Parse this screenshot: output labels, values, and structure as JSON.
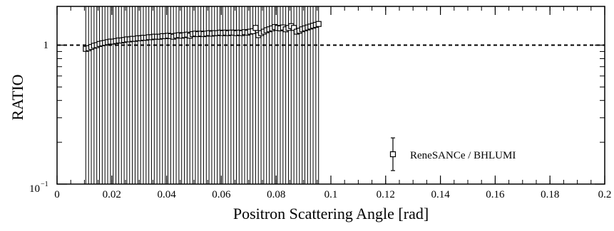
{
  "chart_data": {
    "type": "scatter",
    "title": "",
    "xlabel": "Positron Scattering Angle [rad]",
    "ylabel": "RATIO",
    "xlim": [
      0,
      0.2
    ],
    "ylim": [
      0.1,
      1.9
    ],
    "yscale": "log",
    "x_ticks": [
      "0",
      "0.02",
      "0.04",
      "0.06",
      "0.08",
      "0.1",
      "0.12",
      "0.14",
      "0.16",
      "0.18",
      "0.2"
    ],
    "y_tick_labels": {
      "one": "1",
      "tenth_base": "10",
      "tenth_exp": "−1"
    },
    "reference_line": {
      "y": 1,
      "style": "dashed"
    },
    "legend": {
      "label": "ReneSANCe / BHLUMI",
      "position": "bottom-right",
      "marker": "open-square-with-errorbar"
    },
    "series": [
      {
        "name": "ReneSANCe / BHLUMI",
        "marker": "open-square",
        "error": "extends beyond plot range",
        "x": [
          0.0105,
          0.0115,
          0.0125,
          0.0135,
          0.0145,
          0.0155,
          0.0165,
          0.0175,
          0.0185,
          0.0195,
          0.0205,
          0.0215,
          0.0225,
          0.0235,
          0.0245,
          0.0255,
          0.0265,
          0.0275,
          0.0285,
          0.0295,
          0.0305,
          0.0315,
          0.0325,
          0.0335,
          0.0345,
          0.0355,
          0.0365,
          0.0375,
          0.0385,
          0.0395,
          0.0405,
          0.0415,
          0.0425,
          0.0435,
          0.0445,
          0.0455,
          0.0465,
          0.0475,
          0.0485,
          0.0495,
          0.0505,
          0.0515,
          0.0525,
          0.0535,
          0.0545,
          0.0555,
          0.0565,
          0.0575,
          0.0585,
          0.0595,
          0.0605,
          0.0615,
          0.0625,
          0.0635,
          0.0645,
          0.0655,
          0.0665,
          0.0675,
          0.0685,
          0.0695,
          0.0705,
          0.0715,
          0.0725,
          0.0735,
          0.0745,
          0.0755,
          0.0765,
          0.0775,
          0.0785,
          0.0795,
          0.0805,
          0.0815,
          0.0825,
          0.0835,
          0.0845,
          0.0855,
          0.0865,
          0.0875,
          0.0885,
          0.0895,
          0.0905,
          0.0915,
          0.0925,
          0.0935,
          0.0945,
          0.0955
        ],
        "y": [
          0.94,
          0.95,
          0.97,
          0.99,
          1.0,
          1.02,
          1.03,
          1.04,
          1.05,
          1.06,
          1.06,
          1.07,
          1.08,
          1.08,
          1.09,
          1.1,
          1.1,
          1.11,
          1.11,
          1.12,
          1.12,
          1.13,
          1.13,
          1.14,
          1.14,
          1.15,
          1.15,
          1.15,
          1.16,
          1.16,
          1.17,
          1.16,
          1.15,
          1.17,
          1.18,
          1.17,
          1.18,
          1.19,
          1.17,
          1.2,
          1.21,
          1.2,
          1.21,
          1.2,
          1.21,
          1.22,
          1.21,
          1.22,
          1.22,
          1.23,
          1.22,
          1.23,
          1.22,
          1.23,
          1.23,
          1.22,
          1.23,
          1.22,
          1.24,
          1.23,
          1.25,
          1.26,
          1.33,
          1.18,
          1.22,
          1.25,
          1.28,
          1.3,
          1.32,
          1.35,
          1.33,
          1.32,
          1.34,
          1.3,
          1.33,
          1.37,
          1.33,
          1.25,
          1.27,
          1.3,
          1.32,
          1.34,
          1.36,
          1.38,
          1.4,
          1.42
        ]
      }
    ]
  }
}
